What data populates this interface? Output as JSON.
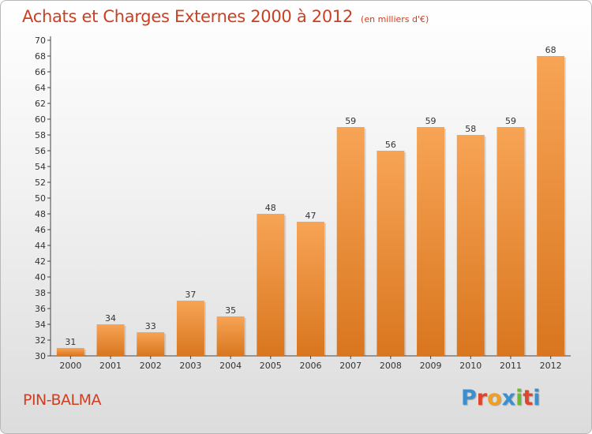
{
  "header": {
    "title": "Achats et Charges Externes 2000 à 2012",
    "unit": "(en milliers d'€)"
  },
  "footer": {
    "commune": "PIN-BALMA",
    "logo_letters": [
      "P",
      "r",
      "o",
      "x",
      "i",
      "t",
      "i"
    ]
  },
  "colors": {
    "title": "#cc3f21",
    "bar_top": "#f7a455",
    "bar_bottom": "#d9761f",
    "logo": [
      "#3a8fd0",
      "#e0442b",
      "#f0a020",
      "#3a8fd0",
      "#6bb833",
      "#e0442b",
      "#3a8fd0"
    ]
  },
  "chart_data": {
    "type": "bar",
    "title": "Achats et Charges Externes 2000 à 2012",
    "subtitle": "(en milliers d'€)",
    "categories": [
      "2000",
      "2001",
      "2002",
      "2003",
      "2004",
      "2005",
      "2006",
      "2007",
      "2008",
      "2009",
      "2010",
      "2011",
      "2012"
    ],
    "values": [
      31,
      34,
      33,
      37,
      35,
      48,
      47,
      59,
      56,
      59,
      58,
      59,
      68
    ],
    "ylim": [
      30,
      70
    ],
    "ytick_step": 2,
    "grid": false,
    "legend": "none"
  }
}
